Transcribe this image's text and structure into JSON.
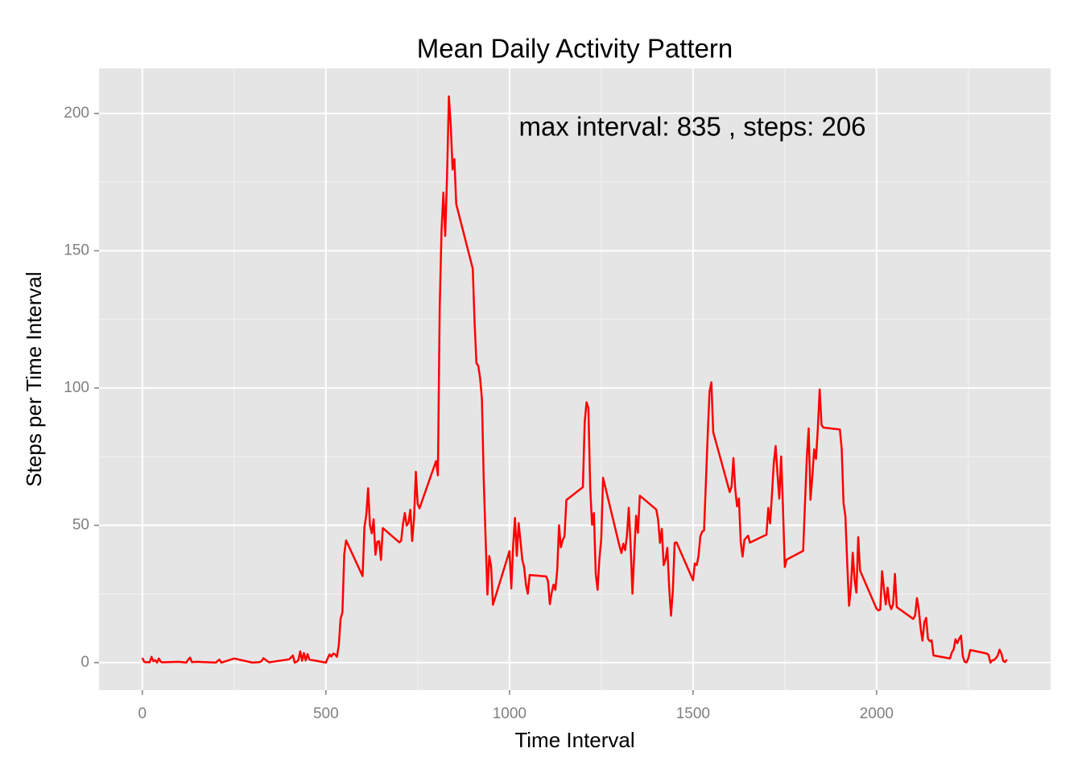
{
  "chart_data": {
    "type": "line",
    "title": "Mean Daily Activity Pattern",
    "x_label": "Time Interval",
    "y_label": "Steps per Time Interval",
    "annotation": "max interval: 835 , steps: 206",
    "color": "#ff0000",
    "grid": true,
    "xlim": [
      -118,
      2474
    ],
    "ylim": [
      -10,
      216.4
    ],
    "xticks": [
      0,
      500,
      1000,
      1500,
      2000
    ],
    "yticks": [
      0,
      50,
      100,
      150,
      200
    ],
    "x_minor_ticks": [
      250,
      750,
      1250,
      1750,
      2250
    ],
    "y_minor_ticks": [
      25,
      75,
      125,
      175
    ],
    "x": [
      0,
      5,
      10,
      15,
      20,
      25,
      30,
      35,
      40,
      45,
      50,
      55,
      100,
      120,
      125,
      130,
      135,
      150,
      200,
      210,
      215,
      250,
      300,
      320,
      325,
      330,
      345,
      400,
      410,
      415,
      420,
      425,
      430,
      435,
      440,
      445,
      450,
      455,
      500,
      505,
      510,
      515,
      520,
      525,
      530,
      535,
      540,
      545,
      550,
      555,
      600,
      605,
      610,
      615,
      620,
      625,
      630,
      635,
      640,
      645,
      650,
      655,
      700,
      705,
      710,
      715,
      720,
      725,
      730,
      735,
      740,
      745,
      750,
      755,
      800,
      805,
      810,
      815,
      820,
      825,
      830,
      835,
      840,
      845,
      850,
      855,
      900,
      905,
      910,
      915,
      920,
      925,
      930,
      935,
      940,
      945,
      950,
      955,
      1000,
      1005,
      1010,
      1015,
      1020,
      1025,
      1030,
      1035,
      1040,
      1045,
      1050,
      1055,
      1100,
      1105,
      1110,
      1115,
      1120,
      1125,
      1130,
      1135,
      1140,
      1145,
      1150,
      1155,
      1200,
      1205,
      1210,
      1215,
      1220,
      1225,
      1230,
      1235,
      1240,
      1245,
      1250,
      1255,
      1300,
      1305,
      1310,
      1315,
      1320,
      1325,
      1330,
      1335,
      1340,
      1345,
      1350,
      1355,
      1400,
      1405,
      1410,
      1415,
      1420,
      1425,
      1430,
      1435,
      1440,
      1445,
      1450,
      1455,
      1500,
      1505,
      1510,
      1515,
      1520,
      1525,
      1530,
      1535,
      1540,
      1545,
      1550,
      1555,
      1600,
      1605,
      1610,
      1615,
      1620,
      1625,
      1630,
      1635,
      1640,
      1645,
      1650,
      1655,
      1700,
      1705,
      1710,
      1715,
      1720,
      1725,
      1730,
      1735,
      1740,
      1745,
      1750,
      1755,
      1800,
      1805,
      1810,
      1815,
      1820,
      1825,
      1830,
      1835,
      1840,
      1845,
      1850,
      1855,
      1900,
      1905,
      1910,
      1915,
      1920,
      1925,
      1930,
      1935,
      1940,
      1945,
      1950,
      1955,
      2000,
      2005,
      2010,
      2015,
      2020,
      2025,
      2030,
      2035,
      2040,
      2045,
      2050,
      2055,
      2100,
      2105,
      2110,
      2115,
      2120,
      2125,
      2130,
      2135,
      2140,
      2145,
      2150,
      2155,
      2200,
      2205,
      2210,
      2215,
      2220,
      2225,
      2230,
      2235,
      2240,
      2245,
      2250,
      2255,
      2300,
      2305,
      2310,
      2315,
      2320,
      2325,
      2330,
      2335,
      2340,
      2345,
      2350,
      2355
    ],
    "values": [
      1.7,
      0.3,
      0.1,
      0.2,
      0.1,
      2.1,
      0.5,
      0.9,
      0,
      1.5,
      0.3,
      0.1,
      0.3,
      0,
      1.1,
      1.8,
      0.2,
      0.3,
      0,
      1.1,
      0,
      1.5,
      0,
      0.2,
      0.6,
      1.6,
      0.1,
      1.2,
      2.6,
      0,
      0.3,
      0.9,
      4.1,
      0.7,
      3.5,
      0.8,
      3.1,
      1.1,
      0,
      1.6,
      3,
      2.2,
      3.3,
      3,
      2.1,
      6.1,
      16,
      18.3,
      39.5,
      44.5,
      31.5,
      49.3,
      53.8,
      63.5,
      50,
      47.1,
      52.2,
      39.3,
      44,
      44.2,
      37.4,
      49,
      43.8,
      44.4,
      50.5,
      54.5,
      49.9,
      51,
      55.7,
      44.3,
      52.3,
      69.5,
      57.8,
      56.2,
      73.4,
      68.2,
      129.4,
      157.5,
      171.2,
      155.4,
      177.3,
      206.2,
      195.9,
      179.6,
      183.4,
      167,
      143.5,
      124,
      109.1,
      108.1,
      103.7,
      95.9,
      66.2,
      45.2,
      24.8,
      38.8,
      34.98,
      21.1,
      40.6,
      26.98,
      42.4,
      52.7,
      38.9,
      50.8,
      44.3,
      37.4,
      34.7,
      28.3,
      25.1,
      31.9,
      31.4,
      29.7,
      21.3,
      25.5,
      28.4,
      26.5,
      33.4,
      50,
      42,
      44.6,
      46,
      59.2,
      63.9,
      87.7,
      94.8,
      92.8,
      63.4,
      50.2,
      54.5,
      32.4,
      26.5,
      37.7,
      45.1,
      67.3,
      42.3,
      39.9,
      43.3,
      40.98,
      46.2,
      56.4,
      42.8,
      25.1,
      39.96,
      53.5,
      47.3,
      60.8,
      55.75,
      51.9,
      43.6,
      48.7,
      35.5,
      37.5,
      41.8,
      27.5,
      17.1,
      26.1,
      43.6,
      43.8,
      30,
      36.1,
      35.5,
      38.8,
      45.96,
      47.75,
      48.1,
      65.3,
      82.9,
      98.7,
      102.1,
      83.96,
      62.1,
      64.1,
      74.5,
      63.2,
      56.9,
      59.8,
      43.9,
      38.6,
      44.7,
      45.5,
      46.2,
      43.7,
      46.6,
      56.3,
      50.7,
      61.2,
      72.7,
      78.9,
      68.9,
      59.7,
      75.1,
      56.5,
      34.8,
      37.5,
      40.7,
      58,
      74.7,
      85.3,
      59.3,
      67.8,
      77.7,
      74.2,
      85.3,
      99.5,
      86.6,
      85.6,
      84.9,
      77.8,
      58,
      53.4,
      36.3,
      20.7,
      27.4,
      40,
      30.2,
      25.5,
      45.7,
      33.5,
      19.6,
      19,
      19.3,
      33.3,
      26.8,
      21.2,
      27.3,
      21.3,
      19.5,
      21.3,
      32.3,
      20.2,
      15.9,
      17.2,
      23.5,
      19.2,
      12.5,
      8,
      14.7,
      16.3,
      8.7,
      7.8,
      8.1,
      2.6,
      1.5,
      3.7,
      4.8,
      8.5,
      7.1,
      8.7,
      9.8,
      2.2,
      0.3,
      0.1,
      1.6,
      4.6,
      3.3,
      2.8,
      0,
      0.8,
      0.96,
      1.6,
      2.6,
      4.7,
      3.3,
      0.6,
      0.2,
      1.1
    ]
  }
}
